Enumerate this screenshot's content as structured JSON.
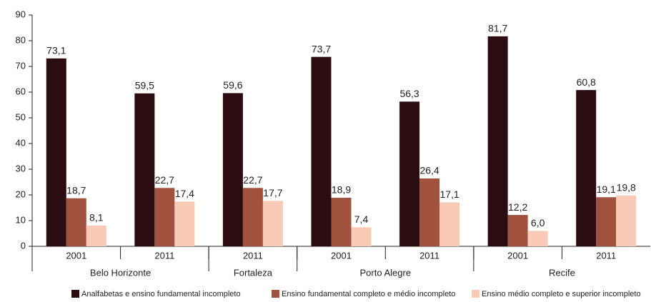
{
  "chart_data": {
    "type": "bar",
    "groups": [
      {
        "name": "Belo Horizonte",
        "categories": [
          "2001",
          "2011"
        ]
      },
      {
        "name": "Fortaleza",
        "categories": [
          "2011"
        ]
      },
      {
        "name": "Porto Alegre",
        "categories": [
          "2001",
          "2011"
        ]
      },
      {
        "name": "Recife",
        "categories": [
          "2001",
          "2011"
        ]
      }
    ],
    "series": [
      {
        "name": "Analfabetas e ensino fundamental incompleto",
        "color": "#2b0c10",
        "values": [
          73.1,
          59.5,
          59.6,
          73.7,
          56.3,
          81.7,
          60.8
        ],
        "value_labels": [
          "73,1",
          "59,5",
          "59,6",
          "73,7",
          "56,3",
          "81,7",
          "60,8"
        ]
      },
      {
        "name": "Ensino fundamental completo e médio incompleto",
        "color": "#a0523f",
        "values": [
          18.7,
          22.7,
          22.7,
          18.9,
          26.4,
          12.2,
          19.1
        ],
        "value_labels": [
          "18,7",
          "22,7",
          "22,7",
          "18,9",
          "26,4",
          "12,2",
          "19,1"
        ]
      },
      {
        "name": "Ensino médio completo e superior incompleto",
        "color": "#f9cbb6",
        "values": [
          8.1,
          17.4,
          17.7,
          7.4,
          17.1,
          6.0,
          19.8
        ],
        "value_labels": [
          "8,1",
          "17,4",
          "17,7",
          "7,4",
          "17,1",
          "6,0",
          "19,8"
        ]
      }
    ],
    "ylim": [
      0,
      90
    ],
    "yticks": [
      0,
      10,
      20,
      30,
      40,
      50,
      60,
      70,
      80,
      90
    ]
  }
}
